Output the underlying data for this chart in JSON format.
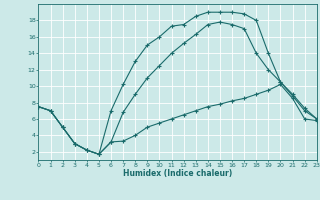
{
  "title": "",
  "xlabel": "Humidex (Indice chaleur)",
  "xlim": [
    0,
    23
  ],
  "ylim": [
    1,
    20
  ],
  "xticks": [
    0,
    1,
    2,
    3,
    4,
    5,
    6,
    7,
    8,
    9,
    10,
    11,
    12,
    13,
    14,
    15,
    16,
    17,
    18,
    19,
    20,
    21,
    22,
    23
  ],
  "yticks": [
    2,
    4,
    6,
    8,
    10,
    12,
    14,
    16,
    18
  ],
  "bg_color": "#cce9e8",
  "line_color": "#1a6b6b",
  "grid_color": "#ffffff",
  "line1_x": [
    0,
    1,
    2,
    3,
    4,
    5,
    6,
    7,
    8,
    9,
    10,
    11,
    12,
    13,
    14,
    15,
    16,
    17,
    18,
    19,
    20,
    21,
    22,
    23
  ],
  "line1_y": [
    7.5,
    7.0,
    5.0,
    3.0,
    2.2,
    1.7,
    3.2,
    3.3,
    4.0,
    5.0,
    5.5,
    6.0,
    6.5,
    7.0,
    7.5,
    7.8,
    8.2,
    8.5,
    9.0,
    9.5,
    10.2,
    8.5,
    6.0,
    5.8
  ],
  "line2_x": [
    0,
    1,
    2,
    3,
    4,
    5,
    6,
    7,
    8,
    9,
    10,
    11,
    12,
    13,
    14,
    15,
    16,
    17,
    18,
    19,
    20,
    21,
    22,
    23
  ],
  "line2_y": [
    7.5,
    7.0,
    5.0,
    3.0,
    2.2,
    1.7,
    7.0,
    10.2,
    13.0,
    15.0,
    16.0,
    17.3,
    17.5,
    18.5,
    19.0,
    19.0,
    19.0,
    18.8,
    18.0,
    14.0,
    10.5,
    8.8,
    7.0,
    6.0
  ],
  "line3_x": [
    0,
    1,
    2,
    3,
    4,
    5,
    6,
    7,
    8,
    9,
    10,
    11,
    12,
    13,
    14,
    15,
    16,
    17,
    18,
    19,
    20,
    21,
    22,
    23
  ],
  "line3_y": [
    7.5,
    7.0,
    5.0,
    3.0,
    2.2,
    1.7,
    3.2,
    6.8,
    9.0,
    11.0,
    12.5,
    14.0,
    15.2,
    16.3,
    17.5,
    17.8,
    17.5,
    17.0,
    14.0,
    12.0,
    10.5,
    9.0,
    7.3,
    6.0
  ]
}
